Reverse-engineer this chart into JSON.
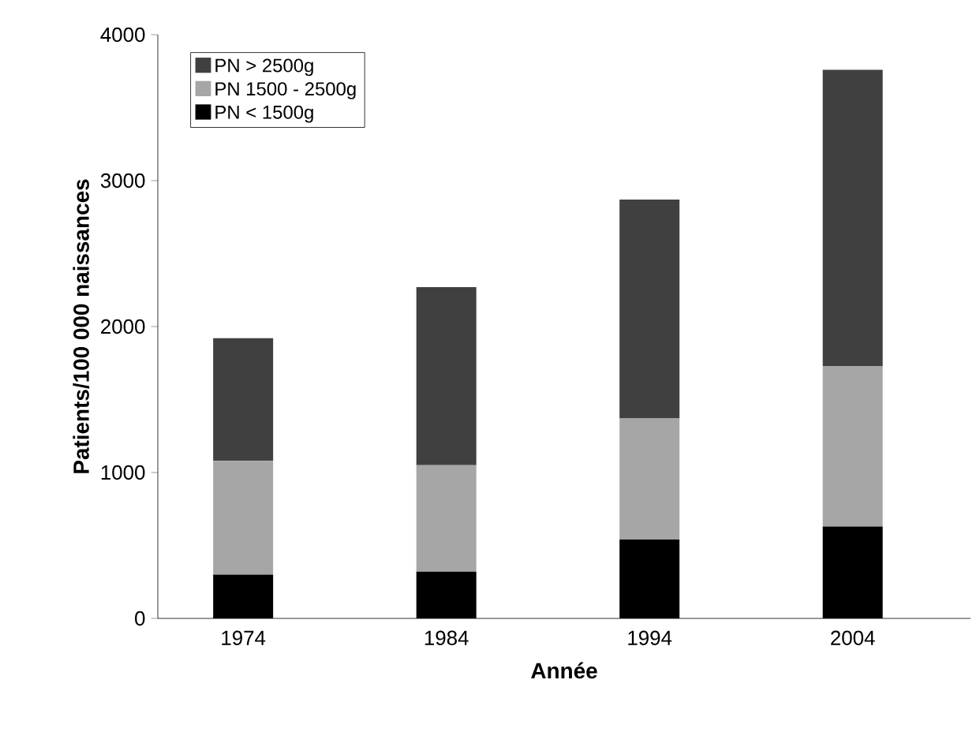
{
  "chart_data": {
    "type": "bar",
    "stacked": true,
    "xlabel": "Année",
    "ylabel": "Patients/100 000 naissances",
    "categories": [
      "1974",
      "1984",
      "1994",
      "2004"
    ],
    "series": [
      {
        "name": "PN < 1500g",
        "color": "#000000",
        "values": [
          300,
          320,
          540,
          630
        ]
      },
      {
        "name": "PN 1500 - 2500g",
        "color": "#a6a6a6",
        "values": [
          780,
          730,
          830,
          1100
        ]
      },
      {
        "name": "PN > 2500g",
        "color": "#404040",
        "values": [
          840,
          1220,
          1500,
          2030
        ]
      }
    ],
    "ylim": [
      0,
      4000
    ],
    "yticks": [
      0,
      1000,
      2000,
      3000,
      4000
    ],
    "grid": false,
    "legend": "top left"
  }
}
